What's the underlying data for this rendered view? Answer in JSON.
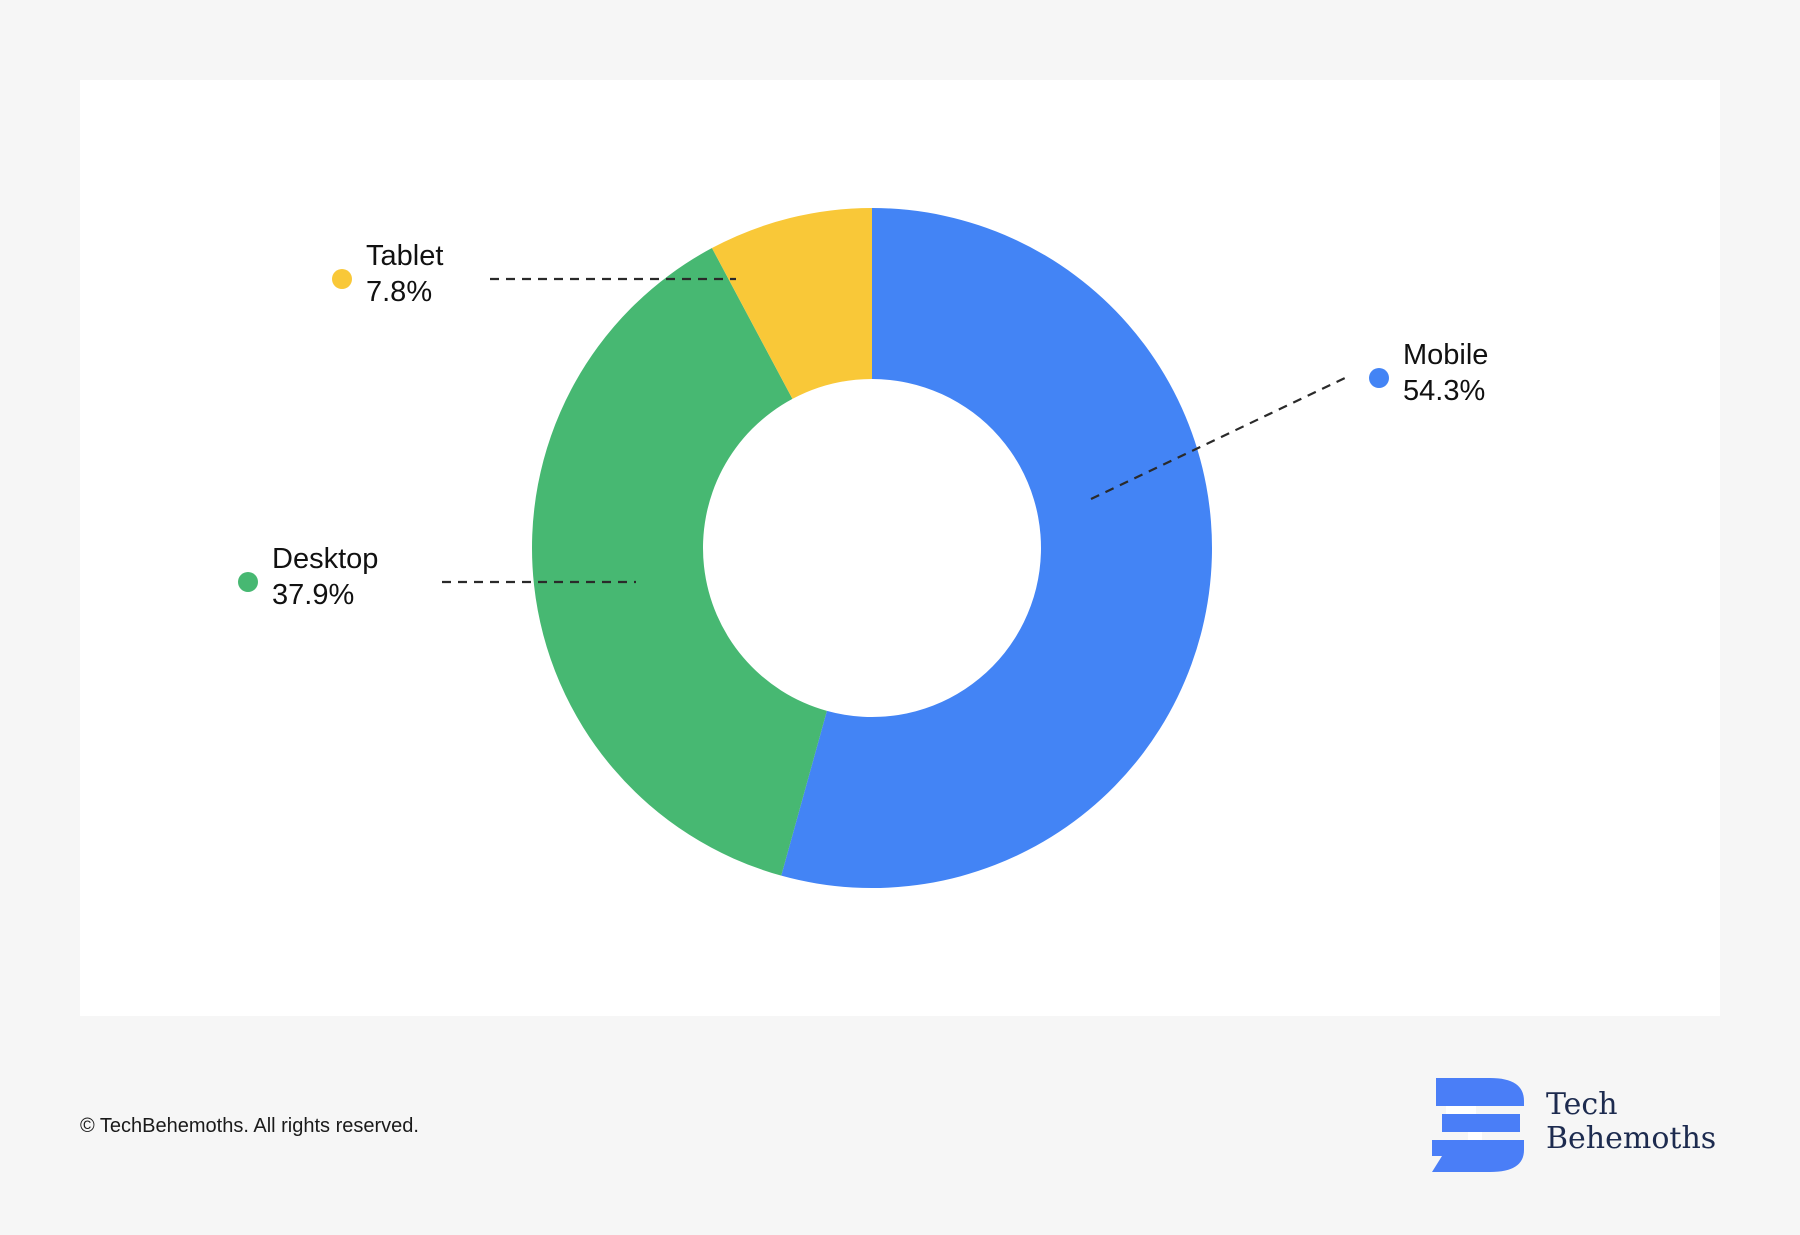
{
  "chart_data": {
    "type": "pie",
    "variant": "donut",
    "slices": [
      {
        "label": "Mobile",
        "value": 54.3,
        "value_label": "54.3%",
        "color": "#4384f5"
      },
      {
        "label": "Desktop",
        "value": 37.9,
        "value_label": "37.9%",
        "color": "#47b872"
      },
      {
        "label": "Tablet",
        "value": 7.8,
        "value_label": "7.8%",
        "color": "#f9c838"
      }
    ],
    "legend": "callouts around the donut"
  },
  "footer": {
    "copyright": "© TechBehemoths. All rights reserved."
  },
  "brand": {
    "line1": "Tech",
    "line2": "Behemoths",
    "logo_color": "#4a7ef7",
    "text_color": "#1d2b4f"
  }
}
